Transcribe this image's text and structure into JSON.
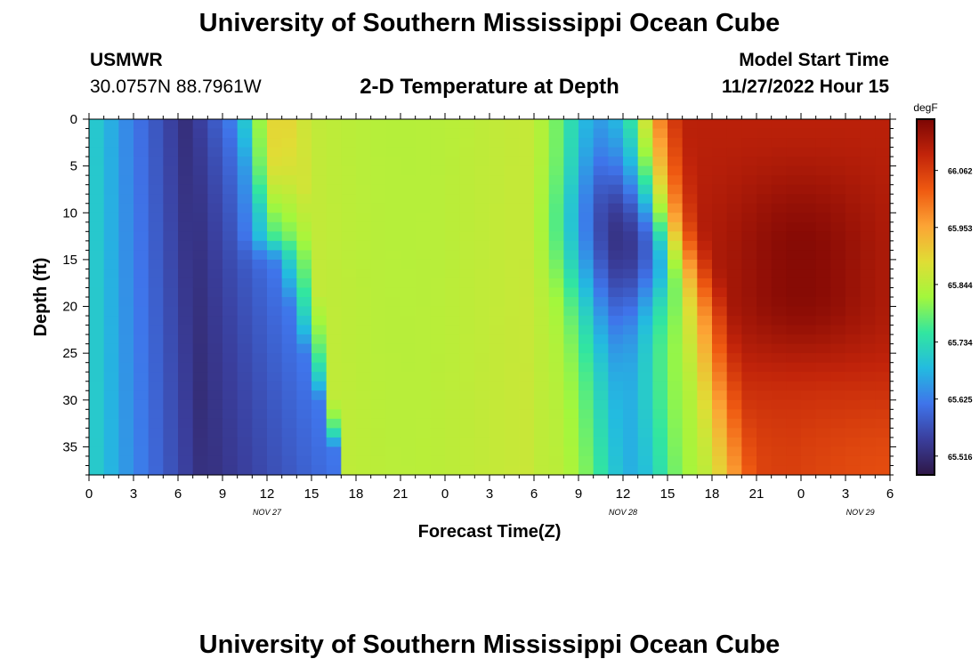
{
  "header": {
    "title": "University of Southern Mississippi Ocean Cube",
    "station": "USMWR",
    "coords": "30.0757N  88.7961W",
    "plot_title": "2-D Temperature at Depth",
    "model_label": "Model Start Time",
    "model_time": "11/27/2022 Hour 15"
  },
  "footer": {
    "title": "University of Southern Mississippi Ocean Cube"
  },
  "colors": {
    "colormap": [
      "#2e1746",
      "#3a3e9c",
      "#3f74ea",
      "#23bbe0",
      "#32e6a0",
      "#a3f73c",
      "#e0dd35",
      "#fca435",
      "#ef5a11",
      "#c2240a",
      "#7c0604"
    ]
  },
  "chart_data": {
    "type": "heatmap",
    "title": "2-D Temperature at Depth",
    "xlabel": "Forecast Time(Z)",
    "ylabel": "Depth (ft)",
    "colorbar_label": "degF",
    "x_ticks": [
      "0",
      "3",
      "6",
      "9",
      "12",
      "15",
      "18",
      "21",
      "0",
      "3",
      "6",
      "9",
      "12",
      "15",
      "18",
      "21",
      "0",
      "3",
      "6"
    ],
    "x_range_hours": [
      0,
      54
    ],
    "date_labels": [
      {
        "label": "NOV 27",
        "hour": 12
      },
      {
        "label": "NOV 28",
        "hour": 36
      },
      {
        "label": "NOV 29",
        "hour": 52
      }
    ],
    "y_ticks": [
      0,
      5,
      10,
      15,
      20,
      25,
      30,
      35
    ],
    "y_range": [
      0,
      38
    ],
    "colorbar_ticks": [
      "66.062",
      "65.953",
      "65.844",
      "65.734",
      "65.625",
      "65.516"
    ],
    "value_range": [
      65.48,
      66.16
    ],
    "grid": {
      "nx": 54,
      "ny": 38
    },
    "features": {
      "cold_band_1": "centered ~hour 6.5, full depth (~65.52 degF)",
      "warm_patch": "~hour 12-13, depth 0-13 ft (~65.98 degF)",
      "neutral_plateau": "hours 16-29 (~65.84-65.86 degF)",
      "cold_band_2": "hours 32-40, minimum near hour 35, 14 ft (~65.52 degF)",
      "warm_front": "from ~hour 38 at surface to ~hour 46 at 38 ft, up to ~66.13 degF"
    }
  }
}
